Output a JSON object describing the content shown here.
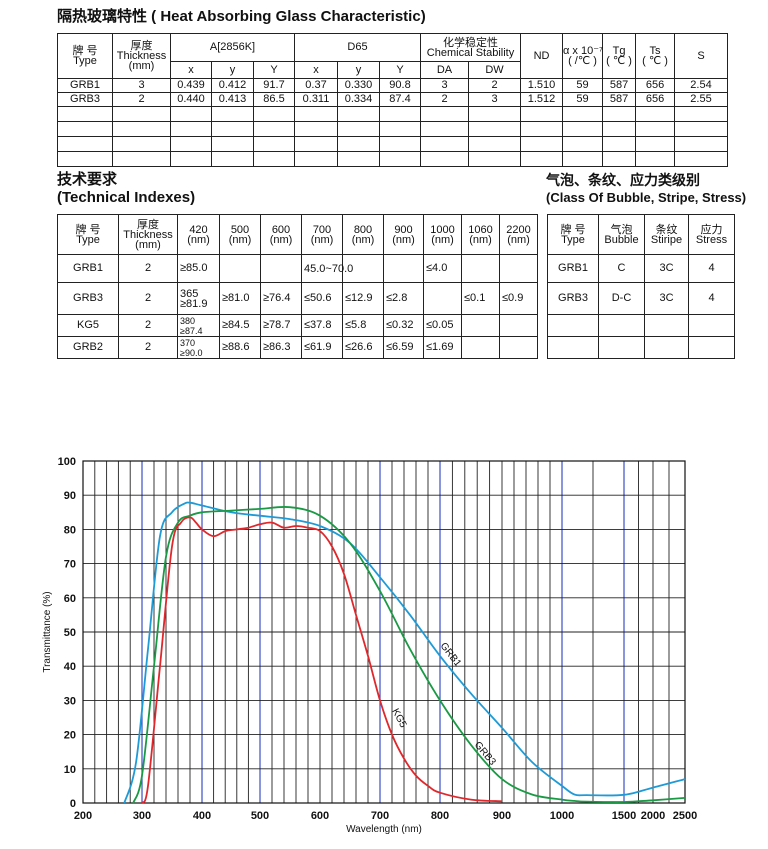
{
  "heat_absorbing": {
    "title": "隔热玻璃特性 ( Heat Absorbing Glass Characteristic)",
    "headers": {
      "type_cn": "牌 号",
      "type_en": "Type",
      "thick_cn": "厚度",
      "thick_en": "Thickness",
      "thick_unit": "(mm)",
      "a2856k": "A[2856K]",
      "d65": "D65",
      "chem_cn": "化学稳定性",
      "chem_en": "Chemical Stability",
      "nd": "ND",
      "alpha_top": "α x 10⁻⁷",
      "alpha_unit": "( /℃ )",
      "tg": "Tg",
      "tg_unit": "( ℃ )",
      "ts": "Ts",
      "ts_unit": "( ℃ )",
      "s": "S",
      "x": "x",
      "y": "y",
      "Y": "Y",
      "x2": "x",
      "y2": "y",
      "Y2": "Y",
      "da": "DA",
      "dw": "DW"
    },
    "rows": [
      [
        "GRB1",
        "3",
        "0.439",
        "0.412",
        "91.7",
        "0.37",
        "0.330",
        "90.8",
        "3",
        "2",
        "1.510",
        "59",
        "587",
        "656",
        "2.54"
      ],
      [
        "GRB3",
        "2",
        "0.440",
        "0.413",
        "86.5",
        "0.311",
        "0.334",
        "87.4",
        "2",
        "3",
        "1.512",
        "59",
        "587",
        "656",
        "2.55"
      ]
    ]
  },
  "technical": {
    "title_cn": "技术要求",
    "title_en": "(Technical Indexes)",
    "headers": {
      "type_cn": "牌 号",
      "type_en": "Type",
      "thick_cn": "厚度",
      "thick_en": "Thickness",
      "thick_unit": "(mm)",
      "wavelengths": [
        "420",
        "500",
        "600",
        "700",
        "800",
        "900",
        "1000",
        "1060",
        "2200"
      ],
      "nm": "(nm)"
    },
    "rows": [
      {
        "type": "GRB1",
        "thick": "2",
        "vals": [
          "≥85.0",
          "",
          "",
          "45.0~70.0",
          "",
          "",
          "≤4.0",
          "",
          ""
        ]
      },
      {
        "type": "GRB3",
        "thick": "2",
        "vals": [
          "365 ≥81.9",
          "≥81.0",
          "≥76.4",
          "≤50.6",
          "≤12.9",
          "≤2.8",
          "",
          "≤0.1",
          "≤0.9"
        ]
      },
      {
        "type": "KG5",
        "thick": "2",
        "vals": [
          "380 ≥87.4",
          "≥84.5",
          "≥78.7",
          "≤37.8",
          "≤5.8",
          "≤0.32",
          "≤0.05",
          "",
          ""
        ]
      },
      {
        "type": "GRB2",
        "thick": "2",
        "vals": [
          "370 ≥90.0",
          "≥88.6",
          "≥86.3",
          "≤61.9",
          "≤26.6",
          "≤6.59",
          "≤1.69",
          "",
          ""
        ]
      }
    ]
  },
  "bubble": {
    "title_cn": "气泡、条纹、应力类级别",
    "title_en": "(Class Of Bubble, Stripe, Stress)",
    "headers": {
      "type_cn": "牌 号",
      "type_en": "Type",
      "bubble_cn": "气泡",
      "bubble_en": "Bubble",
      "stripe_cn": "条纹",
      "stripe_en": "Stiripe",
      "stress_cn": "应力",
      "stress_en": "Stress"
    },
    "rows": [
      [
        "GRB1",
        "C",
        "3C",
        "4"
      ],
      [
        "GRB3",
        "D-C",
        "3C",
        "4"
      ]
    ]
  },
  "chart_data": {
    "type": "line",
    "title": "",
    "xlabel": "Wavelength (nm)",
    "ylabel": "Transmittance (%)",
    "ylim": [
      0,
      100
    ],
    "grid": true,
    "x_ticks": [
      "200",
      "300",
      "400",
      "500",
      "600",
      "700",
      "800",
      "900",
      "1000",
      "1500",
      "2000",
      "2500"
    ],
    "y_ticks": [
      "0",
      "10",
      "20",
      "30",
      "40",
      "50",
      "60",
      "70",
      "80",
      "90",
      "100"
    ],
    "series": [
      {
        "name": "GRB1",
        "color": "#1e9bd7",
        "x": [
          270,
          290,
          310,
          330,
          350,
          370,
          380,
          400,
          450,
          500,
          550,
          600,
          650,
          700,
          750,
          800,
          850,
          900,
          950,
          1000,
          1100,
          1200,
          1500,
          2000,
          2500
        ],
        "y": [
          0,
          12,
          45,
          78,
          85,
          87.5,
          87.8,
          87,
          85,
          84,
          83,
          81,
          76,
          66,
          55,
          43,
          32,
          22,
          12,
          5,
          2.5,
          2.3,
          2.4,
          4.5,
          7
        ]
      },
      {
        "name": "GRB3",
        "color": "#1a9a45",
        "x": [
          285,
          300,
          320,
          340,
          360,
          380,
          400,
          450,
          500,
          550,
          600,
          650,
          700,
          750,
          800,
          850,
          900,
          950,
          1000,
          1100,
          1200,
          1500,
          2000,
          2500
        ],
        "y": [
          0,
          8,
          40,
          72,
          82,
          84,
          85,
          85.5,
          86,
          86.5,
          84,
          76,
          62,
          45,
          30,
          17,
          7,
          2.5,
          1,
          0.6,
          0.4,
          0.3,
          0.8,
          1.5
        ]
      },
      {
        "name": "KG5",
        "color": "#e0282c",
        "x": [
          300,
          310,
          330,
          350,
          365,
          380,
          390,
          400,
          420,
          440,
          460,
          480,
          500,
          520,
          540,
          560,
          580,
          600,
          620,
          640,
          660,
          680,
          700,
          720,
          740,
          760,
          780,
          800,
          850,
          900
        ],
        "y": [
          0,
          5,
          40,
          75,
          82,
          83.5,
          82,
          80,
          78,
          79.5,
          80,
          80.5,
          81.5,
          82,
          80.5,
          81,
          80.5,
          79.5,
          75,
          67,
          55,
          43,
          30,
          20,
          13,
          8,
          5,
          3,
          1,
          0.5
        ]
      }
    ]
  }
}
